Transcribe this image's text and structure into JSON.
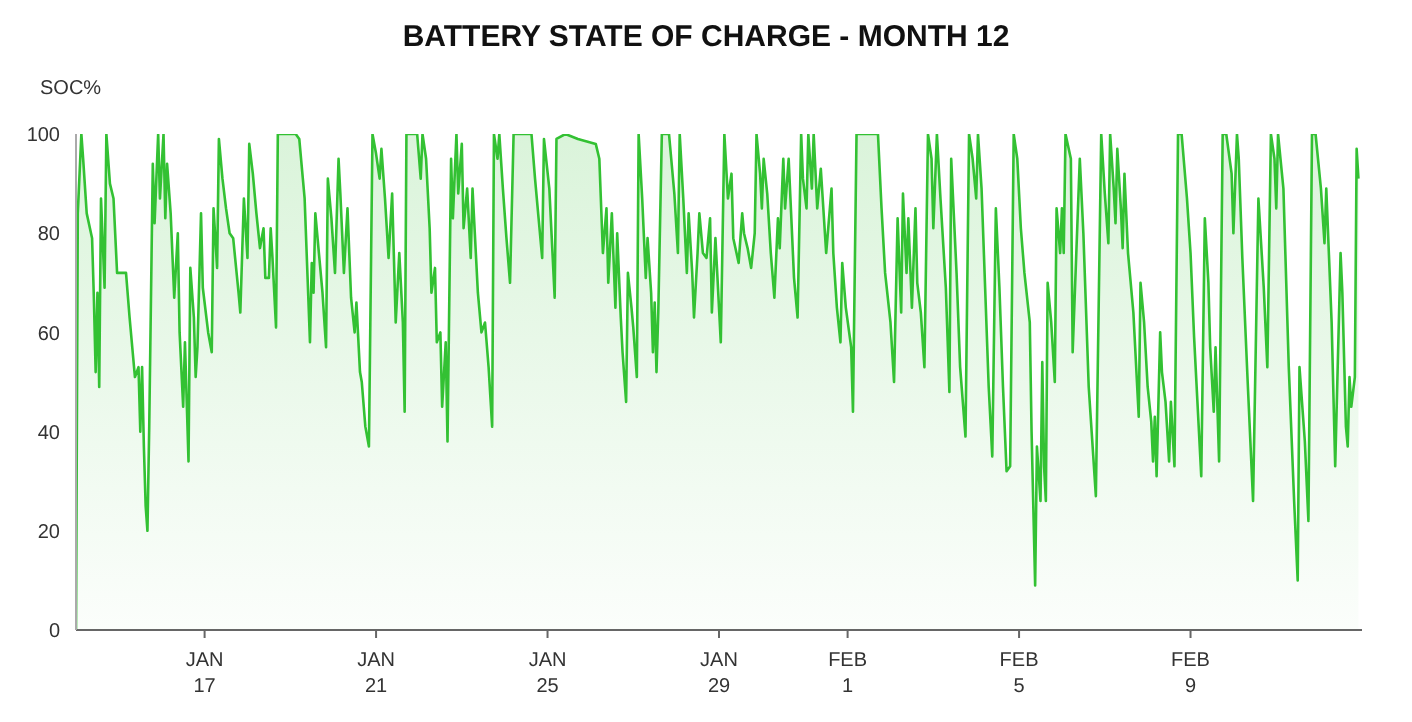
{
  "chart_data": {
    "type": "area",
    "title": "BATTERY STATE OF CHARGE - MONTH 12",
    "ylabel": "SOC%",
    "color": "#33c133",
    "x": [
      "--01-14T00:00",
      "--01-14T01:00",
      "--01-14T03:00",
      "--01-14T04:00",
      "--01-14T06:00",
      "--01-14T09:00",
      "--01-14T10:00",
      "--01-14T11:00",
      "--01-14T12:00",
      "--01-14T13:00",
      "--01-14T14:00",
      "--01-14T16:00",
      "--01-14T17:00",
      "--01-14T19:00",
      "--01-14T21:00",
      "--01-14T23:00",
      "--01-15T04:00",
      "--01-15T06:00",
      "--01-15T09:00",
      "--01-15T11:00",
      "--01-15T12:00",
      "--01-15T13:00",
      "--01-15T14:00",
      "--01-15T15:00",
      "--01-15T16:00",
      "--01-15T17:00",
      "--01-15T19:00",
      "--01-15T20:00",
      "--01-15T22:00",
      "--01-15T23:00",
      "--01-16T01:00",
      "--01-16T02:00",
      "--01-16T03:00",
      "--01-16T05:00",
      "--01-16T07:00",
      "--01-16T09:00",
      "--01-16T10:00",
      "--01-16T12:00",
      "--01-16T13:00",
      "--01-16T15:00",
      "--01-16T16:00",
      "--01-16T18:00",
      "--01-16T19:00",
      "--01-16T20:00",
      "--01-16T22:00",
      "--01-16T23:00",
      "--01-17T02:00",
      "--01-17T04:00",
      "--01-17T05:00",
      "--01-17T07:00",
      "--01-17T08:00",
      "--01-17T10:00",
      "--01-17T12:00",
      "--01-17T14:00",
      "--01-17T16:00",
      "--01-17T19:00",
      "--01-17T20:00",
      "--01-17T22:00",
      "--01-18T00:00",
      "--01-18T01:00",
      "--01-18T03:00",
      "--01-18T05:00",
      "--01-18T07:00",
      "--01-18T09:00",
      "--01-18T10:00",
      "--01-18T12:00",
      "--01-18T13:00",
      "--01-18T14:00",
      "--01-18T16:00",
      "--01-18T17:00",
      "--01-19T03:00",
      "--01-19T05:00",
      "--01-19T07:00",
      "--01-19T08:00",
      "--01-19T11:00",
      "--01-19T12:00",
      "--01-19T13:00",
      "--01-19T14:00",
      "--01-19T16:00",
      "--01-19T18:00",
      "--01-19T20:00",
      "--01-19T21:00",
      "--01-19T23:00",
      "--01-20T01:00",
      "--01-20T03:00",
      "--01-20T04:00",
      "--01-20T06:00",
      "--01-20T08:00",
      "--01-20T10:00",
      "--01-20T12:00",
      "--01-20T13:00",
      "--01-20T15:00",
      "--01-20T16:00",
      "--01-20T18:00",
      "--01-20T20:00",
      "--01-20T22:00",
      "--01-21T00:00",
      "--01-21T02:00",
      "--01-21T03:00",
      "--01-21T05:00",
      "--01-21T07:00",
      "--01-21T09:00",
      "--01-21T11:00",
      "--01-21T13:00",
      "--01-21T15:00",
      "--01-21T16:00",
      "--01-21T17:00",
      "--01-21T23:00",
      "--01-22T01:00",
      "--01-22T02:00",
      "--01-22T04:00",
      "--01-22T06:00",
      "--01-22T07:00",
      "--01-22T09:00",
      "--01-22T10:00",
      "--01-22T12:00",
      "--01-22T13:00",
      "--01-22T15:00",
      "--01-22T16:00",
      "--01-22T18:00",
      "--01-22T19:00",
      "--01-22T21:00",
      "--01-22T22:00",
      "--01-23T00:00",
      "--01-23T01:00",
      "--01-23T03:00",
      "--01-23T05:00",
      "--01-23T06:00",
      "--01-23T09:00",
      "--01-23T11:00",
      "--01-23T13:00",
      "--01-23T15:00",
      "--01-23T17:00",
      "--01-23T18:00",
      "--01-23T20:00",
      "--01-23T21:00",
      "--01-23T23:00",
      "--01-24T01:00",
      "--01-24T03:00",
      "--01-24T05:00",
      "--01-24T15:00",
      "--01-24T17:00",
      "--01-24T19:00",
      "--01-24T21:00",
      "--01-24T22:00",
      "--01-25T01:00",
      "--01-25T04:00",
      "--01-25T05:00",
      "--01-25T10:00",
      "--01-25T17:00",
      "--01-26T03:00",
      "--01-26T05:00",
      "--01-26T07:00",
      "--01-26T09:00",
      "--01-26T10:00",
      "--01-26T12:00",
      "--01-26T14:00",
      "--01-26T15:00",
      "--01-26T17:00",
      "--01-26T18:00",
      "--01-26T20:00",
      "--01-26T21:00",
      "--01-26T23:00",
      "--01-27T00:00",
      "--01-27T02:00",
      "--01-27T03:00",
      "--01-27T05:00",
      "--01-27T07:00",
      "--01-27T08:00",
      "--01-27T10:00",
      "--01-27T11:00",
      "--01-27T12:00",
      "--01-27T13:00",
      "--01-27T14:00",
      "--01-27T16:00",
      "--01-27T20:00",
      "--01-27T23:00",
      "--01-28T01:00",
      "--01-28T02:00",
      "--01-28T04:00",
      "--01-28T06:00",
      "--01-28T07:00",
      "--01-28T09:00",
      "--01-28T10:00",
      "--01-28T12:00",
      "--01-28T13:00",
      "--01-28T15:00",
      "--01-28T17:00",
      "--01-28T19:00",
      "--01-28T20:00",
      "--01-28T22:00",
      "--01-28T23:00",
      "--01-29T01:00",
      "--01-29T03:00",
      "--01-29T05:00",
      "--01-29T07:00",
      "--01-29T08:00",
      "--01-29T11:00",
      "--01-29T13:00",
      "--01-29T14:00",
      "--01-29T16:00",
      "--01-29T18:00",
      "--01-29T20:00",
      "--01-29T21:00",
      "--01-29T23:00",
      "--01-30T00:00",
      "--01-30T01:00",
      "--01-30T03:00",
      "--01-30T05:00",
      "--01-30T07:00",
      "--01-30T09:00",
      "--01-30T10:00",
      "--01-30T12:00",
      "--01-30T13:00",
      "--01-30T15:00",
      "--01-30T16:00",
      "--01-30T18:00",
      "--01-30T20:00",
      "--01-30T22:00",
      "--01-30T23:00",
      "--01-31T01:00",
      "--01-31T02:00",
      "--01-31T04:00",
      "--01-31T05:00",
      "--01-31T07:00",
      "--01-31T09:00",
      "--01-31T12:00",
      "--01-31T15:00",
      "--01-31T16:00",
      "--01-31T18:00",
      "--01-31T20:00",
      "--01-31T21:00",
      "--01-31T23:00",
      "--02-01T02:00",
      "--02-01T03:00",
      "--02-01T05:00",
      "--02-01T17:00",
      "--02-01T19:00",
      "--02-01T21:00",
      "--02-02T00:00",
      "--02-02T02:00",
      "--02-02T04:00",
      "--02-02T06:00",
      "--02-02T07:00",
      "--02-02T09:00",
      "--02-02T10:00",
      "--02-02T12:00",
      "--02-02T14:00",
      "--02-02T15:00",
      "--02-02T17:00",
      "--02-02T19:00",
      "--02-02T21:00",
      "--02-02T23:00",
      "--02-03T00:00",
      "--02-03T02:00",
      "--02-03T04:00",
      "--02-03T07:00",
      "--02-03T09:00",
      "--02-03T10:00",
      "--02-03T13:00",
      "--02-03T15:00",
      "--02-03T18:00",
      "--02-03T20:00",
      "--02-03T22:00",
      "--02-04T00:00",
      "--02-04T01:00",
      "--02-04T03:00",
      "--02-04T05:00",
      "--02-04T07:00",
      "--02-04T09:00",
      "--02-04T11:00",
      "--02-04T13:00",
      "--02-04T15:00",
      "--02-04T17:00",
      "--02-04T19:00",
      "--02-04T21:00",
      "--02-04T23:00",
      "--02-05T01:00",
      "--02-05T03:00",
      "--02-05T06:00",
      "--02-05T07:00",
      "--02-05T09:00",
      "--02-05T10:00",
      "--02-05T12:00",
      "--02-05T13:00",
      "--02-05T14:00",
      "--02-05T15:00",
      "--02-05T16:00",
      "--02-05T18:00",
      "--02-05T20:00",
      "--02-05T21:00",
      "--02-05T23:00",
      "--02-06T00:00",
      "--02-06T01:00",
      "--02-06T02:00",
      "--02-06T05:00",
      "--02-06T06:00",
      "--02-06T10:00",
      "--02-06T12:00",
      "--02-06T15:00",
      "--02-06T19:00",
      "--02-06T22:00",
      "--02-07T00:00",
      "--02-07T02:00",
      "--02-07T03:00",
      "--02-07T05:00",
      "--02-07T06:00",
      "--02-07T07:00",
      "--02-07T09:00",
      "--02-07T10:00",
      "--02-07T11:00",
      "--02-07T13:00",
      "--02-07T16:00",
      "--02-07T19:00",
      "--02-07T20:00",
      "--02-07T22:00",
      "--02-08T00:00",
      "--02-08T02:00",
      "--02-08T03:00",
      "--02-08T04:00",
      "--02-08T05:00",
      "--02-08T07:00",
      "--02-08T08:00",
      "--02-08T10:00",
      "--02-08T12:00",
      "--02-08T13:00",
      "--02-08T15:00",
      "--02-08T17:00",
      "--02-08T19:00",
      "--02-08T22:00",
      "--02-09T00:00",
      "--02-09T02:00",
      "--02-09T06:00",
      "--02-09T08:00",
      "--02-09T10:00",
      "--02-09T11:00",
      "--02-09T13:00",
      "--02-09T14:00",
      "--02-09T16:00",
      "--02-09T18:00",
      "--02-09T20:00",
      "--02-09T23:00",
      "--02-10T00:00",
      "--02-10T02:00",
      "--02-10T03:00",
      "--02-10T05:00",
      "--02-10T08:00",
      "--02-10T11:00",
      "--02-10T14:00",
      "--02-10T17:00",
      "--02-10T19:00",
      "--02-10T21:00",
      "--02-10T23:00",
      "--02-11T00:00",
      "--02-11T01:00",
      "--02-11T04:00",
      "--02-11T07:00",
      "--02-11T10:00",
      "--02-11T12:00",
      "--02-11T13:00",
      "--02-11T16:00",
      "--02-11T18:00",
      "--02-11T20:00",
      "--02-11T22:00",
      "--02-12T01:00",
      "--02-12T03:00",
      "--02-12T04:00",
      "--02-12T07:00",
      "--02-12T09:00",
      "--02-12T12:00",
      "--02-12T13:00",
      "--02-12T15:00",
      "--02-12T16:00",
      "--02-12T17:00",
      "--02-12T18:00",
      "--02-12T20:00",
      "--02-12T21:00",
      "--02-12T22:00"
    ],
    "values": [
      0,
      84,
      100,
      95,
      84,
      79,
      67,
      52,
      68,
      49,
      87,
      69,
      100,
      90,
      87,
      72,
      72,
      63,
      51,
      53,
      40,
      53,
      37,
      25,
      20,
      41,
      94,
      82,
      100,
      87,
      100,
      83,
      94,
      84,
      67,
      80,
      60,
      45,
      58,
      34,
      73,
      63,
      51,
      57,
      84,
      69,
      60,
      56,
      85,
      73,
      99,
      91,
      85,
      80,
      79,
      68,
      64,
      87,
      75,
      98,
      92,
      84,
      77,
      81,
      71,
      71,
      81,
      75,
      61,
      100,
      100,
      99,
      91,
      87,
      58,
      74,
      68,
      84,
      76,
      68,
      57,
      91,
      83,
      72,
      95,
      88,
      72,
      85,
      67,
      60,
      66,
      52,
      50,
      41,
      37,
      100,
      96,
      91,
      97,
      87,
      75,
      88,
      62,
      76,
      62,
      44,
      100,
      100,
      91,
      100,
      95,
      81,
      68,
      73,
      58,
      60,
      45,
      58,
      38,
      95,
      83,
      100,
      88,
      98,
      81,
      89,
      75,
      89,
      68,
      60,
      62,
      53,
      41,
      100,
      95,
      100,
      89,
      79,
      70,
      100,
      100,
      91,
      83,
      75,
      99,
      89,
      67,
      99,
      100,
      99,
      98,
      95,
      76,
      85,
      70,
      84,
      65,
      80,
      63,
      56,
      46,
      72,
      65,
      61,
      51,
      100,
      87,
      71,
      79,
      68,
      56,
      66,
      52,
      64,
      100,
      100,
      88,
      76,
      100,
      87,
      72,
      84,
      72,
      63,
      76,
      84,
      76,
      75,
      83,
      64,
      79,
      72,
      58,
      100,
      87,
      92,
      79,
      74,
      84,
      80,
      77,
      73,
      80,
      100,
      92,
      85,
      95,
      88,
      76,
      67,
      83,
      77,
      95,
      85,
      95,
      87,
      71,
      63,
      100,
      91,
      85,
      100,
      89,
      100,
      85,
      93,
      76,
      89,
      76,
      65,
      58,
      74,
      65,
      57,
      44,
      100,
      100,
      85,
      72,
      62,
      50,
      83,
      64,
      88,
      72,
      83,
      65,
      85,
      70,
      64,
      53,
      100,
      95,
      81,
      100,
      87,
      69,
      48,
      95,
      72,
      53,
      39,
      100,
      95,
      87,
      100,
      89,
      69,
      49,
      35,
      85,
      69,
      49,
      32,
      33,
      100,
      95,
      81,
      72,
      62,
      40,
      9,
      37,
      26,
      54,
      33,
      26,
      70,
      62,
      50,
      85,
      76,
      85,
      76,
      100,
      95,
      56,
      95,
      80,
      49,
      27,
      100,
      88,
      78,
      100,
      89,
      82,
      97,
      85,
      77,
      92,
      76,
      64,
      43,
      70,
      62,
      49,
      42,
      34,
      43,
      31,
      60,
      52,
      46,
      34,
      46,
      33,
      100,
      100,
      87,
      76,
      59,
      31,
      83,
      70,
      57,
      44,
      57,
      34,
      100,
      100,
      92,
      80,
      100,
      95,
      75,
      50,
      26,
      87,
      69,
      53,
      100,
      95,
      85,
      100,
      89,
      53,
      26,
      10,
      53,
      38,
      22,
      100,
      100,
      89,
      78,
      89,
      62,
      33,
      76,
      68,
      41,
      37,
      51,
      45,
      51,
      97,
      91
    ],
    "xlim": [
      "--01-14T00:00",
      "--02-13T00:00"
    ],
    "xticks": [
      {
        "value": "--01-17",
        "label": "JAN\n17"
      },
      {
        "value": "--01-21",
        "label": "JAN\n21"
      },
      {
        "value": "--01-25",
        "label": "JAN\n25"
      },
      {
        "value": "--01-29",
        "label": "JAN\n29"
      },
      {
        "value": "--02-01",
        "label": "FEB\n1"
      },
      {
        "value": "--02-05",
        "label": "FEB\n5"
      },
      {
        "value": "--02-09",
        "label": "FEB\n9"
      }
    ],
    "ylim": [
      0,
      100
    ],
    "yticks": [
      0,
      20,
      40,
      60,
      80,
      100
    ],
    "grid": false,
    "legend": false,
    "marker": "none"
  }
}
